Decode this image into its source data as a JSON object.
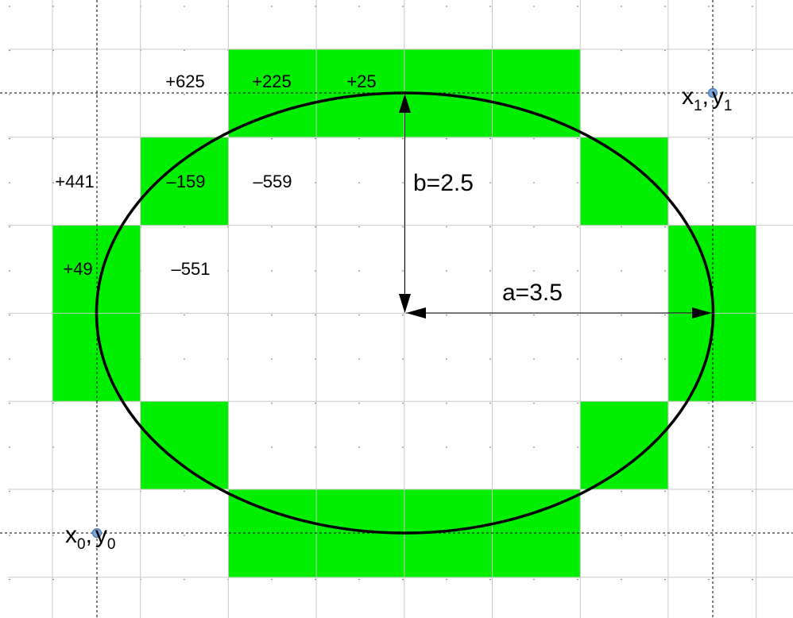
{
  "colors": {
    "fill": "#00ee00",
    "grid": "#c8c8c8",
    "ellipse": "#000000",
    "point": "#7aa6d8"
  },
  "cells": [
    {
      "col": 2,
      "row": 0
    },
    {
      "col": 3,
      "row": 0
    },
    {
      "col": 4,
      "row": 0
    },
    {
      "col": 5,
      "row": 0
    },
    {
      "col": 1,
      "row": 1
    },
    {
      "col": 6,
      "row": 1
    },
    {
      "col": 0,
      "row": 2
    },
    {
      "col": 7,
      "row": 2
    },
    {
      "col": 0,
      "row": 3
    },
    {
      "col": 7,
      "row": 3
    },
    {
      "col": 1,
      "row": 4
    },
    {
      "col": 6,
      "row": 4
    },
    {
      "col": 2,
      "row": 5
    },
    {
      "col": 3,
      "row": 5
    },
    {
      "col": 4,
      "row": 5
    },
    {
      "col": 5,
      "row": 5
    }
  ],
  "error_values": {
    "row0_a": "+625",
    "row0_b": "+225",
    "row0_c": "+25",
    "row1_a": "+441",
    "row1_b": "–159",
    "row1_c": "–559",
    "row2_a": "+49",
    "row2_b": "–551"
  },
  "annotations": {
    "a": "a=3.5",
    "b": "b=2.5"
  },
  "points": {
    "p1": {
      "x": "x",
      "x_sub": "1",
      "sep": ",",
      "y": "y",
      "y_sub": "1"
    },
    "p0": {
      "x": "x",
      "x_sub": "0",
      "sep": ",",
      "y": "y",
      "y_sub": "0"
    }
  }
}
